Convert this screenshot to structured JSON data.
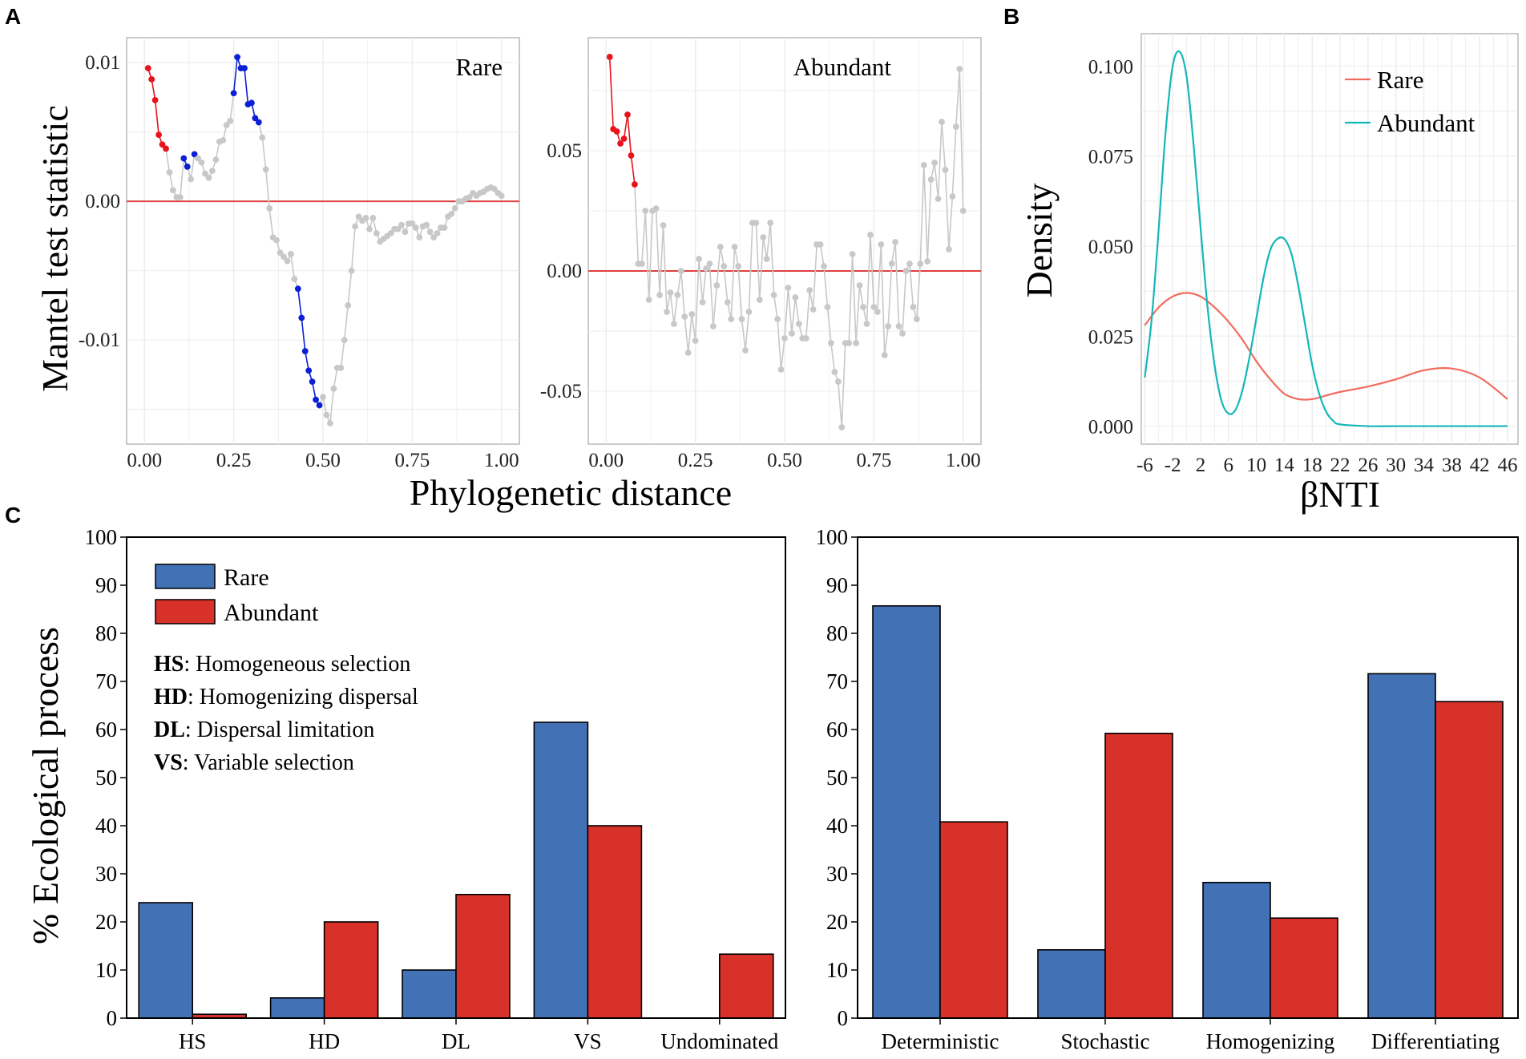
{
  "panel_labels": {
    "a": "A",
    "b": "B",
    "c": "C"
  },
  "colors": {
    "rare_point": "#e8141c",
    "significant_point": "#0b1fd6",
    "nonsignificant_point": "#c8c8c8",
    "zero_line": "#e04040",
    "density_rare": "#f26b5e",
    "density_abundant": "#13b7b9",
    "bar_rare": "#4272b5",
    "bar_abundant": "#d8312a",
    "grid": "#ececec"
  },
  "panel_a": {
    "ylabel": "Mantel test statistic",
    "xlabel": "Phylogenetic distance",
    "x_ticks": [
      "0.00",
      "0.25",
      "0.50",
      "0.75",
      "1.00"
    ]
  },
  "chart_data": [
    {
      "id": "mantel_rare",
      "type": "line",
      "title": "Rare",
      "xlabel": "Phylogenetic distance",
      "ylabel": "Mantel test statistic",
      "xlim": [
        -0.05,
        1.05
      ],
      "ylim": [
        -0.0175,
        0.0118
      ],
      "y_ticks": [
        0.01,
        0.0,
        -0.01
      ],
      "y_tick_labels": [
        "0.01",
        "0.00",
        "-0.01"
      ],
      "x": [
        0.01,
        0.02,
        0.03,
        0.04,
        0.05,
        0.06,
        0.07,
        0.08,
        0.09,
        0.1,
        0.11,
        0.12,
        0.13,
        0.14,
        0.15,
        0.16,
        0.17,
        0.18,
        0.19,
        0.2,
        0.21,
        0.22,
        0.23,
        0.24,
        0.25,
        0.26,
        0.27,
        0.28,
        0.29,
        0.3,
        0.31,
        0.32,
        0.33,
        0.34,
        0.35,
        0.36,
        0.37,
        0.38,
        0.39,
        0.4,
        0.41,
        0.42,
        0.43,
        0.44,
        0.45,
        0.46,
        0.47,
        0.48,
        0.49,
        0.5,
        0.51,
        0.52,
        0.53,
        0.54,
        0.55,
        0.56,
        0.57,
        0.58,
        0.59,
        0.6,
        0.61,
        0.62,
        0.63,
        0.64,
        0.65,
        0.66,
        0.67,
        0.68,
        0.69,
        0.7,
        0.71,
        0.72,
        0.73,
        0.74,
        0.75,
        0.76,
        0.77,
        0.78,
        0.79,
        0.8,
        0.81,
        0.82,
        0.83,
        0.84,
        0.85,
        0.86,
        0.87,
        0.88,
        0.89,
        0.9,
        0.91,
        0.92,
        0.93,
        0.94,
        0.95,
        0.96,
        0.97,
        0.98,
        0.99,
        1.0
      ],
      "y": [
        0.0096,
        0.0088,
        0.0073,
        0.0048,
        0.0041,
        0.0038,
        0.0021,
        0.0008,
        0.0003,
        0.0003,
        0.0031,
        0.0025,
        0.0016,
        0.0034,
        0.0031,
        0.0028,
        0.002,
        0.0017,
        0.0022,
        0.003,
        0.0043,
        0.0044,
        0.0055,
        0.0058,
        0.0078,
        0.0104,
        0.0096,
        0.0096,
        0.007,
        0.0071,
        0.006,
        0.0057,
        0.0046,
        0.0023,
        -0.0005,
        -0.0026,
        -0.0028,
        -0.0037,
        -0.004,
        -0.0043,
        -0.0038,
        -0.0056,
        -0.0063,
        -0.0084,
        -0.0108,
        -0.0122,
        -0.013,
        -0.0143,
        -0.0147,
        -0.0141,
        -0.0154,
        -0.016,
        -0.0135,
        -0.012,
        -0.012,
        -0.01,
        -0.0075,
        -0.005,
        -0.0018,
        -0.0011,
        -0.0014,
        -0.0012,
        -0.002,
        -0.0012,
        -0.0023,
        -0.0029,
        -0.0027,
        -0.0025,
        -0.0023,
        -0.002,
        -0.002,
        -0.0017,
        -0.0022,
        -0.0016,
        -0.0016,
        -0.0019,
        -0.0026,
        -0.0018,
        -0.0017,
        -0.0022,
        -0.0026,
        -0.0023,
        -0.0019,
        -0.0019,
        -0.0011,
        -0.0009,
        -0.0005,
        0.0,
        0.0,
        0.0002,
        0.0003,
        0.0006,
        0.0004,
        0.0006,
        0.0007,
        0.0009,
        0.001,
        0.0009,
        0.0006,
        0.0004
      ],
      "point_class": [
        "r",
        "r",
        "r",
        "r",
        "r",
        "r",
        "g",
        "g",
        "g",
        "g",
        "b",
        "b",
        "g",
        "b",
        "g",
        "g",
        "g",
        "g",
        "g",
        "g",
        "g",
        "g",
        "g",
        "g",
        "b",
        "b",
        "b",
        "b",
        "b",
        "b",
        "b",
        "b",
        "g",
        "g",
        "g",
        "g",
        "g",
        "g",
        "g",
        "g",
        "g",
        "g",
        "b",
        "b",
        "b",
        "b",
        "b",
        "b",
        "b",
        "g",
        "g",
        "g",
        "g",
        "g",
        "g",
        "g",
        "g",
        "g",
        "g",
        "g",
        "g",
        "g",
        "g",
        "g",
        "g",
        "g",
        "g",
        "g",
        "g",
        "g",
        "g",
        "g",
        "g",
        "g",
        "g",
        "g",
        "g",
        "g",
        "g",
        "g",
        "g",
        "g",
        "g",
        "g",
        "g",
        "g",
        "g",
        "g",
        "g",
        "g",
        "g",
        "g",
        "g",
        "g",
        "g",
        "g",
        "g",
        "g",
        "g",
        "g"
      ]
    },
    {
      "id": "mantel_abundant",
      "type": "line",
      "title": "Abundant",
      "xlabel": "Phylogenetic distance",
      "ylabel": "Mantel test statistic",
      "xlim": [
        -0.05,
        1.05
      ],
      "ylim": [
        -0.072,
        0.097
      ],
      "y_ticks": [
        0.05,
        0.0,
        -0.05
      ],
      "y_tick_labels": [
        "0.05",
        "0.00",
        "-0.05"
      ],
      "x": [
        0.01,
        0.02,
        0.03,
        0.04,
        0.05,
        0.06,
        0.07,
        0.08,
        0.09,
        0.1,
        0.11,
        0.12,
        0.13,
        0.14,
        0.15,
        0.16,
        0.17,
        0.18,
        0.19,
        0.2,
        0.21,
        0.22,
        0.23,
        0.24,
        0.25,
        0.26,
        0.27,
        0.28,
        0.29,
        0.3,
        0.31,
        0.32,
        0.33,
        0.34,
        0.35,
        0.36,
        0.37,
        0.38,
        0.39,
        0.4,
        0.41,
        0.42,
        0.43,
        0.44,
        0.45,
        0.46,
        0.47,
        0.48,
        0.49,
        0.5,
        0.51,
        0.52,
        0.53,
        0.54,
        0.55,
        0.56,
        0.57,
        0.58,
        0.59,
        0.6,
        0.61,
        0.62,
        0.63,
        0.64,
        0.65,
        0.66,
        0.67,
        0.68,
        0.69,
        0.7,
        0.71,
        0.72,
        0.73,
        0.74,
        0.75,
        0.76,
        0.77,
        0.78,
        0.79,
        0.8,
        0.81,
        0.82,
        0.83,
        0.84,
        0.85,
        0.86,
        0.87,
        0.88,
        0.89,
        0.9,
        0.91,
        0.92,
        0.93,
        0.94,
        0.95,
        0.96,
        0.97,
        0.98,
        0.99,
        1.0
      ],
      "y": [
        0.089,
        0.059,
        0.058,
        0.053,
        0.055,
        0.065,
        0.048,
        0.036,
        0.003,
        0.003,
        0.025,
        -0.012,
        0.025,
        0.026,
        -0.01,
        0.019,
        -0.017,
        -0.009,
        -0.022,
        -0.01,
        0.0,
        -0.019,
        -0.034,
        -0.018,
        -0.029,
        0.005,
        -0.013,
        0.001,
        0.003,
        -0.023,
        -0.006,
        0.01,
        0.002,
        -0.013,
        -0.02,
        0.01,
        0.002,
        -0.02,
        -0.033,
        -0.017,
        0.02,
        0.02,
        -0.012,
        0.014,
        0.005,
        0.02,
        -0.01,
        -0.02,
        -0.041,
        -0.028,
        -0.007,
        -0.026,
        -0.011,
        -0.022,
        -0.028,
        -0.028,
        -0.008,
        -0.016,
        0.011,
        0.011,
        0.002,
        -0.015,
        -0.03,
        -0.042,
        -0.046,
        -0.065,
        -0.03,
        -0.03,
        0.007,
        -0.03,
        -0.006,
        -0.015,
        -0.022,
        0.015,
        -0.015,
        -0.017,
        0.011,
        -0.035,
        -0.023,
        0.003,
        0.012,
        -0.023,
        -0.026,
        0.0,
        0.003,
        -0.015,
        -0.02,
        0.003,
        0.044,
        0.004,
        0.038,
        0.045,
        0.03,
        0.062,
        0.042,
        0.009,
        0.031,
        0.06,
        0.084,
        0.025
      ],
      "point_class": [
        "r",
        "r",
        "r",
        "r",
        "r",
        "r",
        "r",
        "r",
        "g",
        "g",
        "g",
        "g",
        "g",
        "g",
        "g",
        "g",
        "g",
        "g",
        "g",
        "g",
        "g",
        "g",
        "g",
        "g",
        "g",
        "g",
        "g",
        "g",
        "g",
        "g",
        "g",
        "g",
        "g",
        "g",
        "g",
        "g",
        "g",
        "g",
        "g",
        "g",
        "g",
        "g",
        "g",
        "g",
        "g",
        "g",
        "g",
        "g",
        "g",
        "g",
        "g",
        "g",
        "g",
        "g",
        "g",
        "g",
        "g",
        "g",
        "g",
        "g",
        "g",
        "g",
        "g",
        "g",
        "g",
        "g",
        "g",
        "g",
        "g",
        "g",
        "g",
        "g",
        "g",
        "g",
        "g",
        "g",
        "g",
        "g",
        "g",
        "g",
        "g",
        "g",
        "g",
        "g",
        "g",
        "g",
        "g",
        "g",
        "g",
        "g",
        "g",
        "g",
        "g",
        "g",
        "g",
        "g",
        "g",
        "g",
        "g",
        "g"
      ]
    },
    {
      "id": "density",
      "type": "line",
      "title": "",
      "xlabel": "βNTI",
      "ylabel": "Density",
      "xlim": [
        -6.5,
        47.5
      ],
      "ylim": [
        -0.005,
        0.109
      ],
      "x_ticks": [
        -6,
        -2,
        2,
        6,
        10,
        14,
        18,
        22,
        26,
        30,
        34,
        38,
        42,
        46
      ],
      "x_tick_labels": [
        "-6",
        "-2",
        "2",
        "6",
        "10",
        "14",
        "18",
        "22",
        "26",
        "30",
        "34",
        "38",
        "42",
        "46"
      ],
      "y_ticks": [
        0.0,
        0.025,
        0.05,
        0.075,
        0.1
      ],
      "y_tick_labels": [
        "0.000",
        "0.025",
        "0.050",
        "0.075",
        "0.100"
      ],
      "legend": [
        "Rare",
        "Abundant"
      ],
      "series": [
        {
          "name": "Rare",
          "x": [
            -6,
            -4,
            -2,
            0,
            2,
            4,
            6,
            8,
            10,
            12,
            14,
            16,
            18,
            20,
            22,
            26,
            30,
            34,
            38,
            42,
            46
          ],
          "y": [
            0.028,
            0.033,
            0.036,
            0.037,
            0.036,
            0.033,
            0.029,
            0.024,
            0.018,
            0.013,
            0.009,
            0.0075,
            0.0075,
            0.0085,
            0.0095,
            0.011,
            0.013,
            0.0155,
            0.016,
            0.0135,
            0.0075
          ]
        },
        {
          "name": "Abundant",
          "x": [
            -6,
            -5,
            -4,
            -3,
            -2,
            -1,
            0,
            1,
            2,
            3,
            4,
            5,
            6,
            7,
            8,
            9,
            10,
            11,
            12,
            13,
            14,
            15,
            16,
            17,
            18,
            19,
            20,
            21,
            22,
            26,
            30,
            34,
            38,
            42,
            46
          ],
          "y": [
            0.0135,
            0.03,
            0.055,
            0.082,
            0.1,
            0.104,
            0.097,
            0.078,
            0.055,
            0.033,
            0.017,
            0.007,
            0.0035,
            0.0045,
            0.01,
            0.019,
            0.03,
            0.041,
            0.049,
            0.052,
            0.052,
            0.048,
            0.039,
            0.028,
            0.017,
            0.009,
            0.004,
            0.0015,
            0.0005,
            0.0,
            0.0,
            0.0,
            0.0,
            0.0,
            0.0
          ]
        }
      ]
    },
    {
      "id": "processes",
      "type": "bar",
      "title": "",
      "ylabel": "% Ecological process",
      "ylim": [
        0,
        100
      ],
      "y_ticks": [
        0,
        10,
        20,
        30,
        40,
        50,
        60,
        70,
        80,
        90,
        100
      ],
      "categories": [
        "HS",
        "HD",
        "DL",
        "VS",
        "Undominated"
      ],
      "legend": [
        "Rare",
        "Abundant"
      ],
      "series": [
        {
          "name": "Rare",
          "values": [
            24,
            4.2,
            10,
            61.5,
            0
          ]
        },
        {
          "name": "Abundant",
          "values": [
            0.8,
            20,
            25.7,
            40,
            13.3
          ]
        }
      ]
    },
    {
      "id": "process_summary",
      "type": "bar",
      "title": "",
      "ylabel": "",
      "ylim": [
        0,
        100
      ],
      "y_ticks": [
        0,
        10,
        20,
        30,
        40,
        50,
        60,
        70,
        80,
        90,
        100
      ],
      "categories": [
        "Deterministic",
        "Stochastic",
        "Homogenizing",
        "Differentiating"
      ],
      "series": [
        {
          "name": "Rare",
          "values": [
            85.7,
            14.2,
            28.2,
            71.6
          ]
        },
        {
          "name": "Abundant",
          "values": [
            40.8,
            59.2,
            20.8,
            65.8
          ]
        }
      ]
    }
  ],
  "panel_c": {
    "ylabel": "% Ecological process",
    "legend": {
      "rare": "Rare",
      "abundant": "Abundant"
    },
    "definitions": [
      {
        "abbr": "HS",
        "text": ": Homogeneous selection"
      },
      {
        "abbr": "HD",
        "text": ": Homogenizing dispersal"
      },
      {
        "abbr": "DL",
        "text": ": Dispersal limitation"
      },
      {
        "abbr": "VS",
        "text": ": Variable selection"
      }
    ]
  }
}
